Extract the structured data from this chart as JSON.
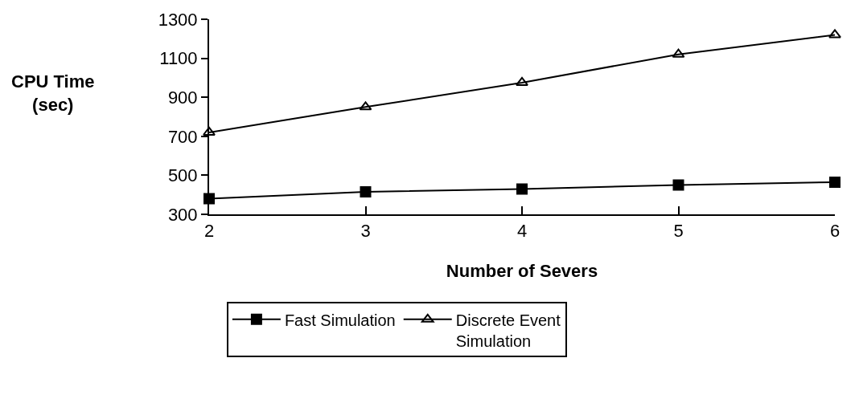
{
  "chart_data": {
    "type": "line",
    "xlabel": "Number of Severs",
    "ylabel": "CPU Time\n(sec)",
    "x": [
      2,
      3,
      4,
      5,
      6
    ],
    "xlim": [
      2,
      6
    ],
    "xticks": [
      2,
      3,
      4,
      5,
      6
    ],
    "ylim": [
      300,
      1300
    ],
    "yticks": [
      300,
      500,
      700,
      900,
      1100,
      1300
    ],
    "series": [
      {
        "name": "Fast Simulation",
        "color": "#000000",
        "marker": "square",
        "values": [
          380,
          415,
          430,
          450,
          465
        ]
      },
      {
        "name": "Discrete Event\nSimulation",
        "color": "#000000",
        "marker": "triangle",
        "values": [
          720,
          850,
          975,
          1120,
          1220
        ]
      }
    ],
    "legend": "bottom"
  }
}
